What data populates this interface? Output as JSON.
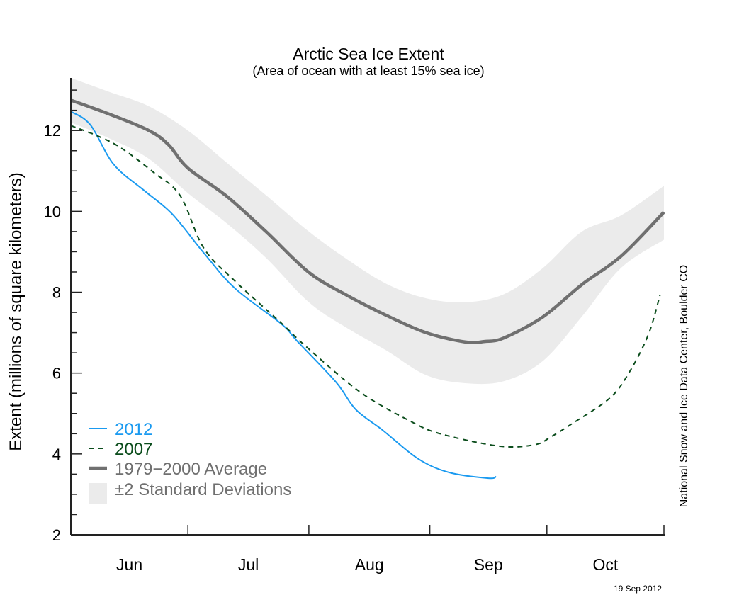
{
  "chart_data": {
    "type": "line",
    "title": "Arctic Sea Ice Extent",
    "subtitle": "(Area of ocean with at least 15% sea ice)",
    "ylabel": "Extent (millions of square kilometers)",
    "xlabel": "",
    "ylim": [
      2,
      13.3
    ],
    "yticks": [
      2,
      4,
      6,
      8,
      10,
      12
    ],
    "xlim": [
      "2012-06-01",
      "2012-10-31"
    ],
    "xticks": [
      {
        "label": "Jun",
        "start": "2012-06-01",
        "end": "2012-07-01"
      },
      {
        "label": "Jul",
        "start": "2012-07-01",
        "end": "2012-08-01"
      },
      {
        "label": "Aug",
        "start": "2012-08-01",
        "end": "2012-09-01"
      },
      {
        "label": "Sep",
        "start": "2012-09-01",
        "end": "2012-10-01"
      },
      {
        "label": "Oct",
        "start": "2012-10-01",
        "end": "2012-10-31"
      }
    ],
    "grid": false,
    "legend_position": "bottom-left",
    "band": {
      "name": "±2 Standard Deviations",
      "color": "#ebebeb",
      "x": [
        "2012-06-01",
        "2012-06-11",
        "2012-06-21",
        "2012-07-01",
        "2012-07-11",
        "2012-07-21",
        "2012-08-01",
        "2012-08-11",
        "2012-08-21",
        "2012-08-31",
        "2012-09-10",
        "2012-09-20",
        "2012-09-30",
        "2012-10-10",
        "2012-10-20",
        "2012-10-31"
      ],
      "upper": [
        13.3,
        12.95,
        12.6,
        12.0,
        11.2,
        10.4,
        9.5,
        8.8,
        8.2,
        7.85,
        7.75,
        7.95,
        8.6,
        9.5,
        9.9,
        10.63
      ],
      "lower": [
        12.2,
        11.8,
        11.3,
        10.45,
        9.7,
        8.85,
        7.75,
        7.1,
        6.55,
        5.95,
        5.75,
        5.8,
        6.3,
        7.4,
        8.6,
        9.3
      ]
    },
    "series": [
      {
        "name": "1979−2000 Average",
        "color": "#707070",
        "style": "solid-thick",
        "x": [
          "2012-06-01",
          "2012-06-11",
          "2012-06-21",
          "2012-06-26",
          "2012-07-01",
          "2012-07-11",
          "2012-07-21",
          "2012-08-01",
          "2012-08-11",
          "2012-08-21",
          "2012-08-31",
          "2012-09-10",
          "2012-09-15",
          "2012-09-20",
          "2012-09-30",
          "2012-10-10",
          "2012-10-20",
          "2012-10-31"
        ],
        "y": [
          12.75,
          12.4,
          12.0,
          11.65,
          11.07,
          10.37,
          9.5,
          8.49,
          7.91,
          7.42,
          7.0,
          6.77,
          6.78,
          6.87,
          7.39,
          8.19,
          8.89,
          9.98
        ]
      },
      {
        "name": "2012",
        "color": "#1a9af0",
        "style": "solid",
        "x": [
          "2012-06-01",
          "2012-06-06",
          "2012-06-12",
          "2012-06-20",
          "2012-06-27",
          "2012-07-05",
          "2012-07-13",
          "2012-07-25",
          "2012-07-29",
          "2012-08-08",
          "2012-08-13",
          "2012-08-20",
          "2012-08-29",
          "2012-09-06",
          "2012-09-16",
          "2012-09-18"
        ],
        "y": [
          12.47,
          12.14,
          11.16,
          10.5,
          9.93,
          8.98,
          8.1,
          7.21,
          6.79,
          5.77,
          5.1,
          4.58,
          3.88,
          3.54,
          3.4,
          3.44
        ]
      },
      {
        "name": "2007",
        "color": "#0b4d1c",
        "style": "dashed",
        "x": [
          "2012-06-01",
          "2012-06-08",
          "2012-06-14",
          "2012-06-22",
          "2012-06-29",
          "2012-07-05",
          "2012-07-13",
          "2012-07-25",
          "2012-07-31",
          "2012-08-14",
          "2012-08-27",
          "2012-09-04",
          "2012-09-19",
          "2012-09-28",
          "2012-10-02",
          "2012-10-07",
          "2012-10-17",
          "2012-10-22",
          "2012-10-27",
          "2012-10-30"
        ],
        "y": [
          12.12,
          11.86,
          11.56,
          10.98,
          10.39,
          9.1,
          8.28,
          7.23,
          6.68,
          5.54,
          4.81,
          4.49,
          4.19,
          4.23,
          4.42,
          4.72,
          5.37,
          6.0,
          6.95,
          7.93
        ]
      }
    ],
    "legend": [
      "2012",
      "2007",
      "1979−2000 Average",
      "±2 Standard Deviations"
    ]
  },
  "credit": "National Snow and Ice Data Center, Boulder CO",
  "date_stamp": "19 Sep 2012"
}
